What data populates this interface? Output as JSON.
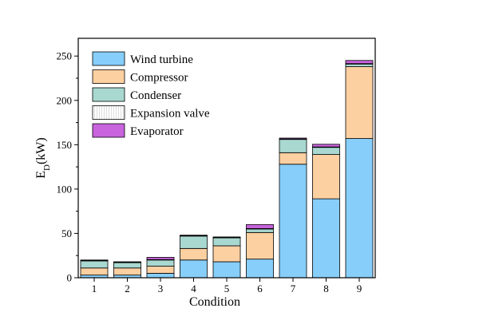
{
  "chart_data": {
    "type": "bar",
    "stacked": true,
    "title": "",
    "xlabel": "Condition",
    "ylabel": {
      "main": "E",
      "sub": "D",
      "rest": "(kW)"
    },
    "categories": [
      "1",
      "2",
      "3",
      "4",
      "5",
      "6",
      "7",
      "8",
      "9"
    ],
    "ylim": [
      0,
      270
    ],
    "yticks": [
      0,
      50,
      100,
      150,
      200,
      250
    ],
    "legend_position": "top-left",
    "series": [
      {
        "name": "Wind turbine",
        "color": "#87cefa",
        "values": [
          3,
          3,
          5,
          20,
          18,
          21,
          128,
          89,
          157
        ]
      },
      {
        "name": "Compressor",
        "color": "#fdd0a2",
        "values": [
          8,
          8,
          8,
          13,
          18,
          30,
          13,
          50,
          81
        ]
      },
      {
        "name": "Condenser",
        "color": "#a8d8d0",
        "values": [
          8,
          6,
          7,
          14,
          9,
          4,
          15,
          8,
          3
        ]
      },
      {
        "name": "Expansion valve",
        "color": "#ffffff",
        "values": [
          0.5,
          0.5,
          0.5,
          0.5,
          0.5,
          0.5,
          0.5,
          0.5,
          0.5
        ]
      },
      {
        "name": "Evaporator",
        "color": "#c864dc",
        "values": [
          0.5,
          0.5,
          2.5,
          0.5,
          0.5,
          4.5,
          1,
          3,
          3.5
        ]
      }
    ]
  }
}
